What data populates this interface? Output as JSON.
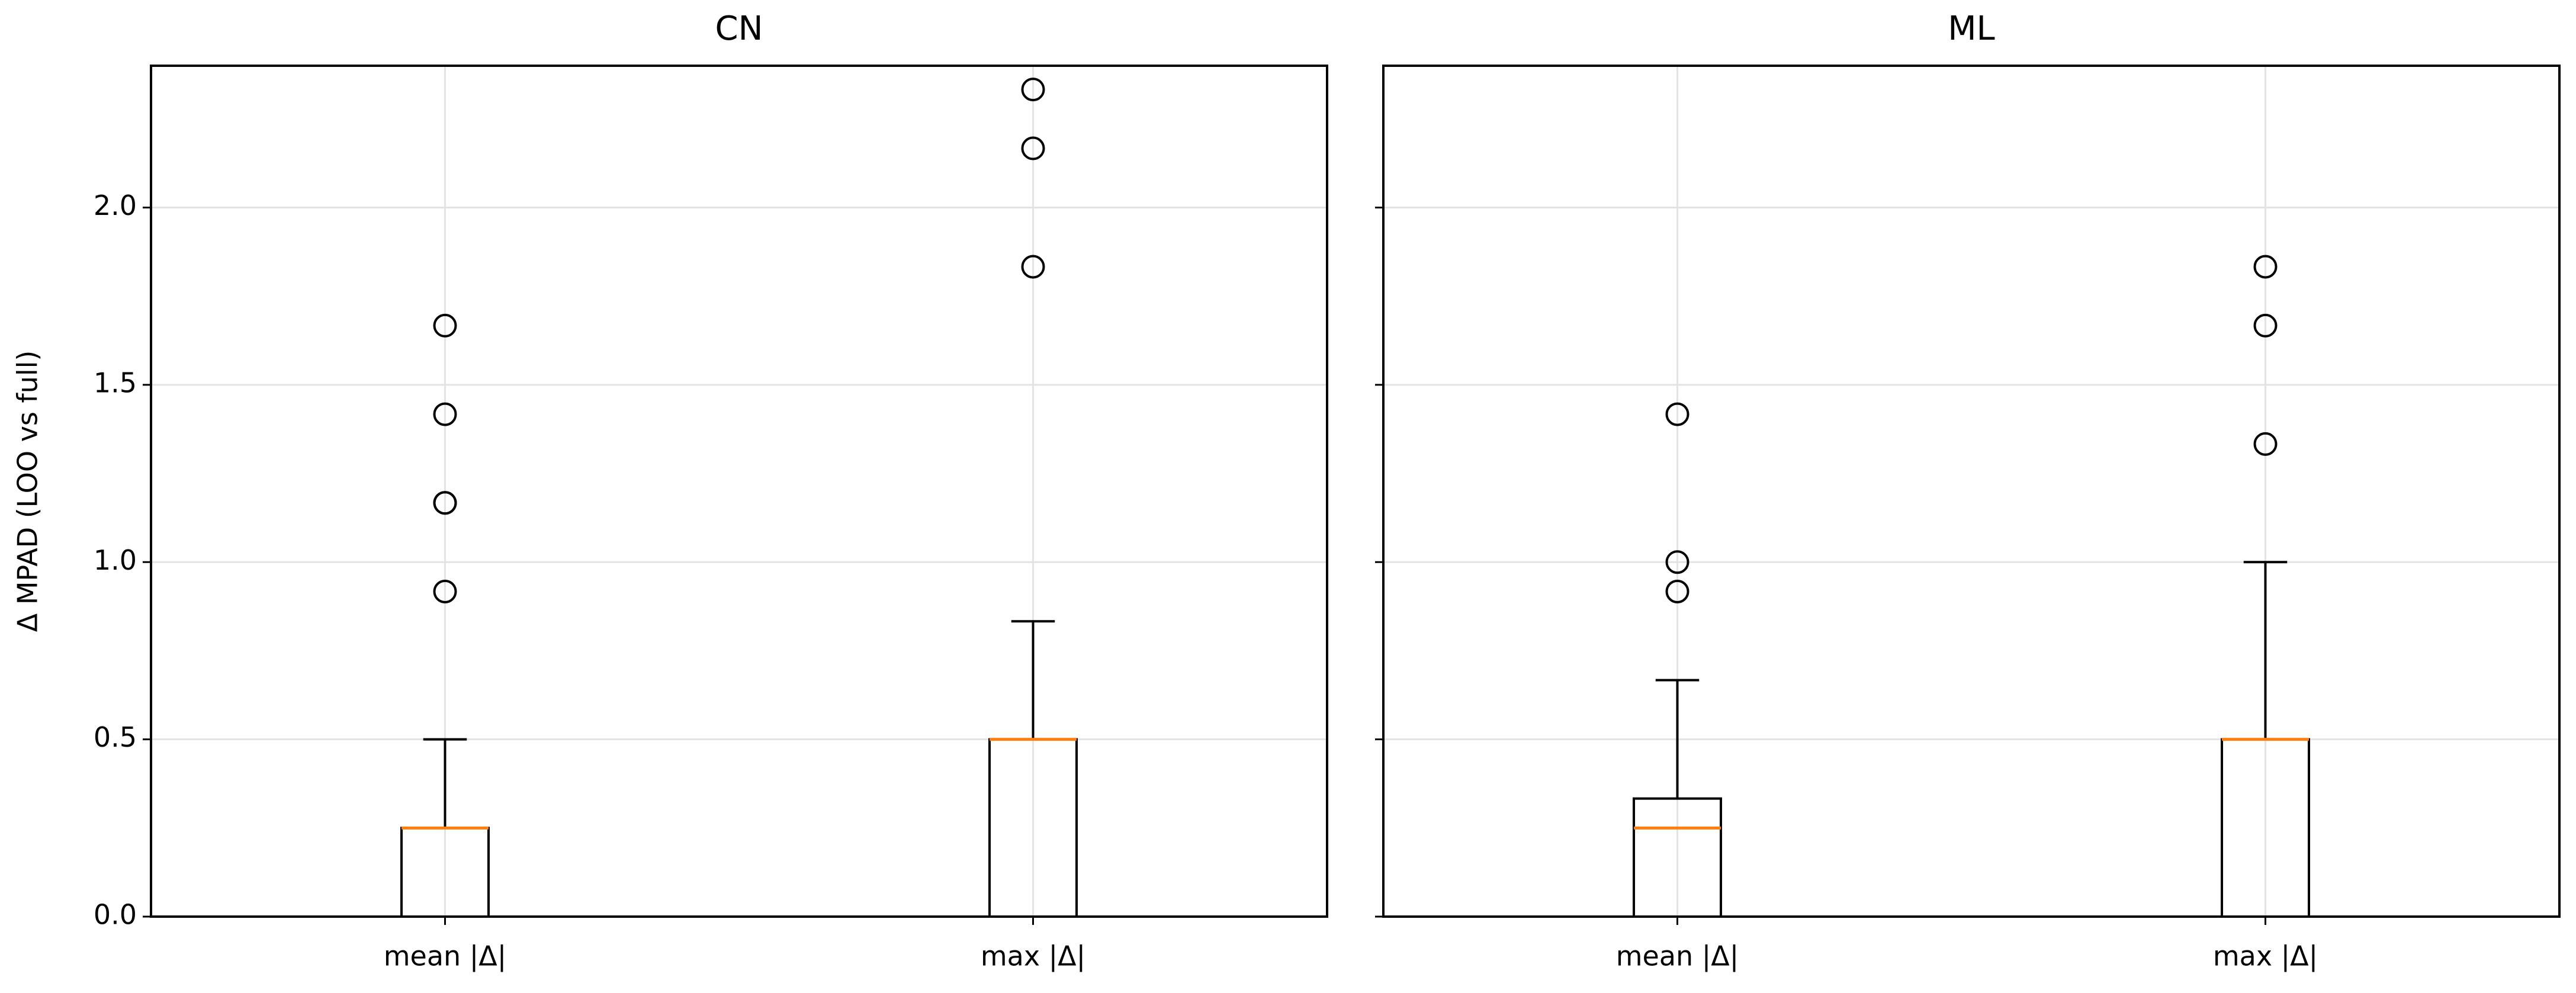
{
  "chart_data": [
    {
      "type": "box",
      "title": "CN",
      "ylabel": "Δ MPAD (LOO vs full)",
      "categories": [
        "mean |Δ|",
        "max |Δ|"
      ],
      "boxes": [
        {
          "min": 0,
          "q1": 0,
          "median": 0.25,
          "q3": 0.25,
          "max": 0.5,
          "outliers": [
            0.917,
            1.167,
            1.167,
            1.417,
            1.667
          ]
        },
        {
          "min": 0,
          "q1": 0,
          "median": 0.5,
          "q3": 0.5,
          "max": 0.833,
          "outliers": [
            1.833,
            2.167,
            2.333
          ]
        }
      ],
      "median_color": "#ff7f0e",
      "ylim": [
        0,
        2.4
      ],
      "yticks": [
        {
          "value": 0,
          "label": "0.0"
        },
        0.5,
        {
          "value": 1,
          "label": "1.0"
        },
        1.5,
        {
          "value": 2,
          "label": "2.0"
        }
      ],
      "grid": true
    },
    {
      "type": "box",
      "title": "ML",
      "categories": [
        "mean |Δ|",
        "max |Δ|"
      ],
      "boxes": [
        {
          "min": 0,
          "q1": 0,
          "median": 0.25,
          "q3": 0.333,
          "max": 0.667,
          "outliers": [
            0.917,
            1.0,
            1.417
          ]
        },
        {
          "min": 0,
          "q1": 0,
          "median": 0.5,
          "q3": 0.5,
          "max": 1.0,
          "outliers": [
            1.333,
            1.667,
            1.833
          ]
        }
      ],
      "median_color": "#ff7f0e",
      "ylim": [
        0,
        2.4
      ],
      "yticks": [
        0,
        0.5,
        1,
        1.5,
        2
      ],
      "show_ytick_labels": false,
      "grid": true
    }
  ]
}
